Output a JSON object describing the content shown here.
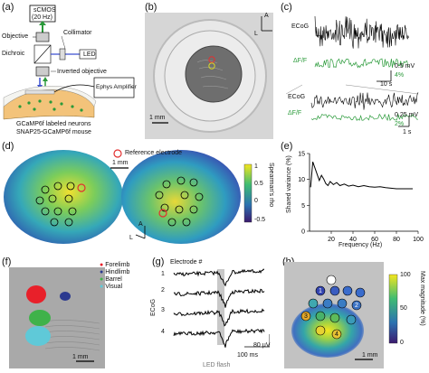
{
  "panels": {
    "a": {
      "label": "(a)",
      "camera": "sCMOS\n(20 Hz)",
      "camera_line1": "sCMOS",
      "camera_line2": "(20 Hz)",
      "objective": "Objective",
      "collimator": "Collimator",
      "dichroic": "Dichroic",
      "led": "LED",
      "inverted_objective": "Inverted objective",
      "amplifier": "Ephys Amplifier",
      "caption1": "GCaMP6f labeled neurons",
      "caption2": "SNAP25-GCaMP6f mouse"
    },
    "b": {
      "label": "(b)",
      "scale": "1 mm",
      "axis_a": "A",
      "axis_l": "L"
    },
    "c": {
      "label": "(c)",
      "ecog1": "ECoG",
      "dff1": "ΔF/F",
      "scale1_mv": "0.5 mV",
      "scale1_pct": "4%",
      "scale1_t": "10 s",
      "ecog2": "ECoG",
      "dff2": "ΔF/F",
      "scale2_mv": "0.25 mV",
      "scale2_pct": "2%",
      "scale2_t": "1 s"
    },
    "d": {
      "label": "(d)",
      "legend": "Reference electrode",
      "scale": "1 mm",
      "cbar_label": "Spearman's rho",
      "cbar_ticks": [
        "1",
        "0.5",
        "0",
        "-0.5"
      ],
      "axis_a": "A",
      "axis_l": "L"
    },
    "e": {
      "label": "(e)",
      "ylabel": "Shared variance (%)",
      "xlabel": "Frequency (Hz)"
    },
    "f": {
      "label": "(f)",
      "scale": "1 mm",
      "legend": [
        {
          "name": "Forelimb",
          "color": "#e8202a"
        },
        {
          "name": "Hindlimb",
          "color": "#2b3a8f"
        },
        {
          "name": "Barrel",
          "color": "#3fb24a"
        },
        {
          "name": "Visual",
          "color": "#5fc9d8"
        }
      ]
    },
    "g": {
      "label": "(g)",
      "header": "Electrode #",
      "ylabel": "ECoG",
      "traces": [
        "1",
        "2",
        "3",
        "4"
      ],
      "scale_v": "80 μV",
      "scale_t": "100 ms",
      "flash": "LED flash"
    },
    "h": {
      "label": "(h)",
      "scale": "1 mm",
      "cbar_label": "Max magnitude (%)",
      "cbar_ticks": [
        "100",
        "50",
        "0"
      ],
      "electrodes": [
        "1",
        "2",
        "3",
        "4"
      ],
      "colors": {
        "e1": "#3344b0",
        "e2": "#3a72c4",
        "e3": "#e0a72a",
        "e4": "#e7c233"
      }
    }
  },
  "chart_data": [
    {
      "type": "line",
      "panel": "e",
      "xlabel": "Frequency (Hz)",
      "ylabel": "Shared variance (%)",
      "xlim": [
        0,
        100
      ],
      "ylim": [
        0,
        15
      ],
      "xticks": [
        20,
        40,
        60,
        80,
        100
      ],
      "yticks": [
        0,
        5,
        10,
        15
      ],
      "x": [
        1,
        3,
        5,
        7,
        9,
        11,
        13,
        15,
        17,
        19,
        22,
        25,
        28,
        32,
        36,
        40,
        45,
        50,
        55,
        60,
        65,
        70,
        75,
        80,
        85,
        90,
        95
      ],
      "y": [
        8.5,
        13.4,
        12.2,
        11.0,
        9.8,
        10.8,
        10.1,
        9.2,
        8.8,
        9.6,
        9.0,
        9.4,
        8.8,
        9.1,
        8.7,
        8.9,
        8.6,
        8.8,
        8.6,
        8.5,
        8.6,
        8.4,
        8.3,
        8.2,
        8.2,
        8.2,
        8.2
      ]
    }
  ]
}
